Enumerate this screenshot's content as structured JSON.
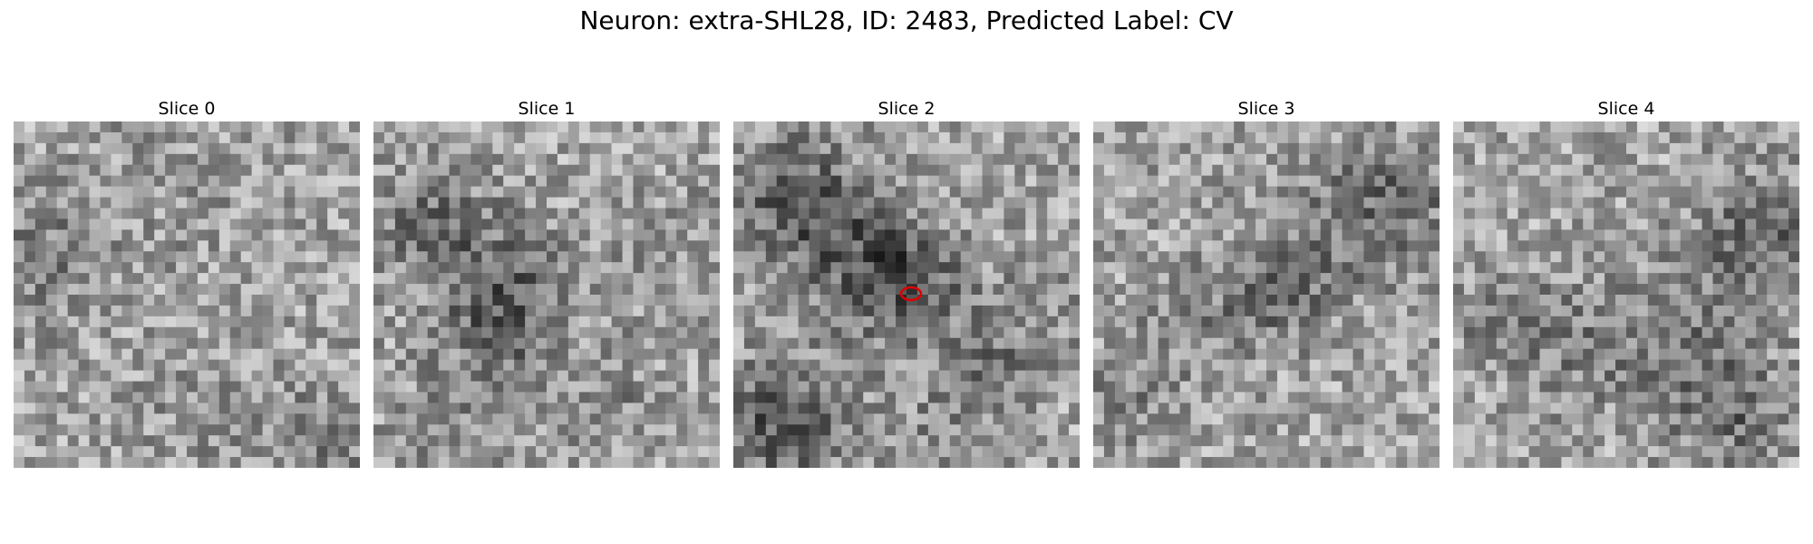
{
  "figure": {
    "title": "Neuron: extra-SHL28, ID: 2483, Predicted Label: CV"
  },
  "panels": [
    {
      "title": "Slice 0"
    },
    {
      "title": "Slice 1"
    },
    {
      "title": "Slice 2"
    },
    {
      "title": "Slice 3"
    },
    {
      "title": "Slice 4"
    }
  ],
  "colors": {
    "marker": "#e00000",
    "background": "#ffffff"
  }
}
